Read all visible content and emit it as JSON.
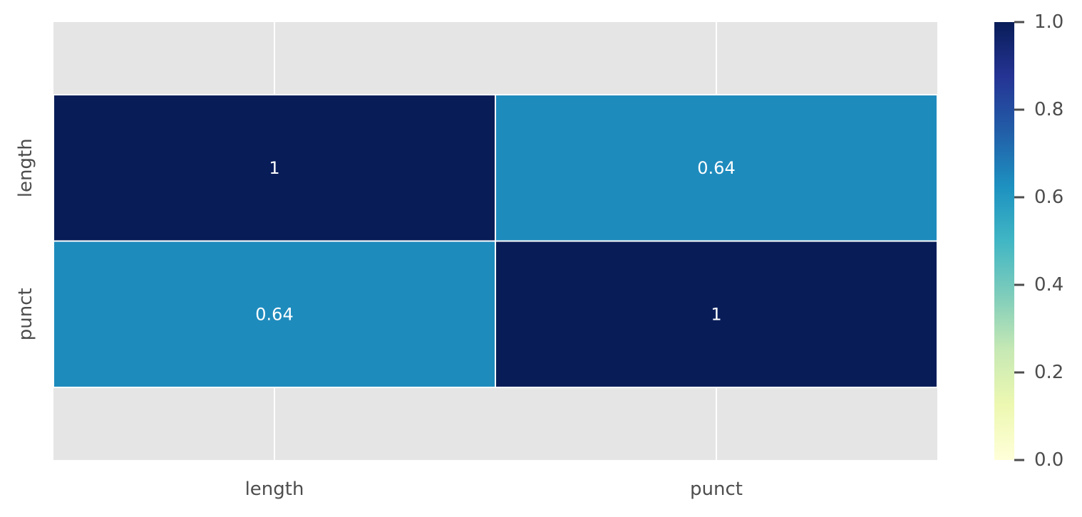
{
  "chart_data": {
    "type": "heatmap",
    "title": "",
    "xlabel": "",
    "ylabel": "",
    "x_categories": [
      "length",
      "punct"
    ],
    "y_categories": [
      "length",
      "punct"
    ],
    "values": [
      [
        1,
        0.64
      ],
      [
        0.64,
        1
      ]
    ],
    "value_labels": [
      [
        "1",
        "0.64"
      ],
      [
        "0.64",
        "1"
      ]
    ],
    "colormap": "YlGnBu",
    "vmin": 0.0,
    "vmax": 1.0,
    "colorbar_ticks": [
      "0.0",
      "0.2",
      "0.4",
      "0.6",
      "0.8",
      "1.0"
    ],
    "colorbar_tick_values": [
      0.0,
      0.2,
      0.4,
      0.6,
      0.8,
      1.0
    ],
    "grid": true,
    "colors": {
      "axes_background": "#e5e5e5",
      "grid": "#ffffff",
      "tick_text": "#4d4d4d",
      "annotation_text": "#ffffff"
    },
    "colormap_stops": [
      "#ffffd9",
      "#edf8b1",
      "#c7e9b4",
      "#7fcdbb",
      "#41b6c4",
      "#1d91c0",
      "#225ea8",
      "#253494",
      "#081d58"
    ]
  }
}
